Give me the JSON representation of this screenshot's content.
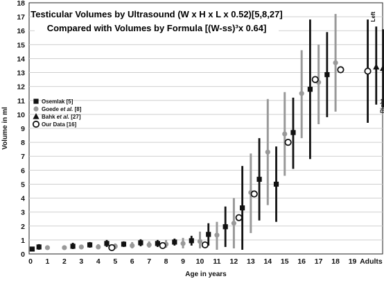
{
  "chart_data": {
    "type": "scatter",
    "title_lines": [
      "Testicular Volumes by Ultrasound (W x H x L x 0.52)[5,8,27]",
      "Compared with Volumes by Formula [(W-ss)³x 0.64]"
    ],
    "xlabel": "Age in years",
    "ylabel": "Volume in ml",
    "ylim": [
      0,
      18
    ],
    "yticks": [
      "0",
      "1",
      "2",
      "3",
      "4",
      "5",
      "6",
      "7",
      "8",
      "9",
      "10",
      "11",
      "12",
      "13",
      "14",
      "15",
      "16",
      "17",
      "18"
    ],
    "xlim": [
      0,
      20.6
    ],
    "xticks": [
      {
        "label": "0",
        "x": 0
      },
      {
        "label": "1",
        "x": 1
      },
      {
        "label": "2",
        "x": 2
      },
      {
        "label": "3",
        "x": 3
      },
      {
        "label": "4",
        "x": 4
      },
      {
        "label": "5",
        "x": 5
      },
      {
        "label": "6",
        "x": 6
      },
      {
        "label": "7",
        "x": 7
      },
      {
        "label": "8",
        "x": 8
      },
      {
        "label": "9",
        "x": 9
      },
      {
        "label": "10",
        "x": 10
      },
      {
        "label": "11",
        "x": 11
      },
      {
        "label": "12",
        "x": 12
      },
      {
        "label": "13",
        "x": 13
      },
      {
        "label": "14",
        "x": 14
      },
      {
        "label": "15",
        "x": 15
      },
      {
        "label": "16",
        "x": 16
      },
      {
        "label": "17",
        "x": 17
      },
      {
        "label": "18",
        "x": 18
      },
      {
        "label": "19",
        "x": 19
      },
      {
        "label": "Adults",
        "x": 20.1
      }
    ],
    "grid": "horizontal",
    "legend_position": "left",
    "series": [
      {
        "name_parts": [
          {
            "t": "Osemlak [5]",
            "i": false
          }
        ],
        "marker": "square",
        "color": "#111111",
        "points": [
          {
            "x": 0.1,
            "y": 0.35,
            "lo": 0.2,
            "hi": 0.5
          },
          {
            "x": 0.5,
            "y": 0.5,
            "lo": 0.3,
            "hi": 0.7
          },
          {
            "x": 2.5,
            "y": 0.55,
            "lo": 0.35,
            "hi": 0.8
          },
          {
            "x": 3.5,
            "y": 0.65,
            "lo": 0.45,
            "hi": 0.85
          },
          {
            "x": 4.5,
            "y": 0.75,
            "lo": 0.5,
            "hi": 1.0
          },
          {
            "x": 5.5,
            "y": 0.7,
            "lo": 0.5,
            "hi": 0.9
          },
          {
            "x": 6.5,
            "y": 0.8,
            "lo": 0.55,
            "hi": 1.05
          },
          {
            "x": 7.5,
            "y": 0.75,
            "lo": 0.5,
            "hi": 1.0
          },
          {
            "x": 8.5,
            "y": 0.85,
            "lo": 0.6,
            "hi": 1.1
          },
          {
            "x": 9.5,
            "y": 0.95,
            "lo": 0.6,
            "hi": 1.3
          },
          {
            "x": 10.5,
            "y": 1.4,
            "lo": 0.6,
            "hi": 2.2
          },
          {
            "x": 11.5,
            "y": 1.95,
            "lo": 0.5,
            "hi": 3.4
          },
          {
            "x": 12.5,
            "y": 3.3,
            "lo": 0.3,
            "hi": 6.3
          },
          {
            "x": 13.5,
            "y": 5.35,
            "lo": 2.4,
            "hi": 8.3
          },
          {
            "x": 14.5,
            "y": 5.0,
            "lo": 2.3,
            "hi": 7.7
          },
          {
            "x": 15.5,
            "y": 8.7,
            "lo": 6.1,
            "hi": 11.2
          },
          {
            "x": 16.5,
            "y": 11.8,
            "lo": 6.8,
            "hi": 16.8
          },
          {
            "x": 17.5,
            "y": 12.85,
            "lo": 9.8,
            "hi": 15.9
          }
        ]
      },
      {
        "name_parts": [
          {
            "t": "Goede ",
            "i": false
          },
          {
            "t": "et al.",
            "i": true
          },
          {
            "t": " [8]",
            "i": false
          }
        ],
        "marker": "circle-filled",
        "color": "#999999",
        "points": [
          {
            "x": 1.0,
            "y": 0.45,
            "lo": 0.35,
            "hi": 0.55
          },
          {
            "x": 2.0,
            "y": 0.45,
            "lo": 0.35,
            "hi": 0.6
          },
          {
            "x": 3.0,
            "y": 0.5,
            "lo": 0.35,
            "hi": 0.65
          },
          {
            "x": 4.0,
            "y": 0.5,
            "lo": 0.35,
            "hi": 0.7
          },
          {
            "x": 5.0,
            "y": 0.55,
            "lo": 0.35,
            "hi": 0.75
          },
          {
            "x": 6.0,
            "y": 0.6,
            "lo": 0.4,
            "hi": 0.85
          },
          {
            "x": 7.0,
            "y": 0.65,
            "lo": 0.45,
            "hi": 0.9
          },
          {
            "x": 8.0,
            "y": 0.7,
            "lo": 0.45,
            "hi": 1.0
          },
          {
            "x": 9.0,
            "y": 0.75,
            "lo": 0.4,
            "hi": 1.15
          },
          {
            "x": 10.0,
            "y": 0.9,
            "lo": 0.4,
            "hi": 1.6
          },
          {
            "x": 11.0,
            "y": 1.35,
            "lo": 0.3,
            "hi": 2.3
          },
          {
            "x": 12.0,
            "y": 2.2,
            "lo": 0.4,
            "hi": 4.0
          },
          {
            "x": 13.0,
            "y": 4.4,
            "lo": 1.5,
            "hi": 7.2
          },
          {
            "x": 14.0,
            "y": 7.3,
            "lo": 3.5,
            "hi": 11.1
          },
          {
            "x": 15.0,
            "y": 8.6,
            "lo": 5.6,
            "hi": 11.6
          },
          {
            "x": 16.0,
            "y": 11.5,
            "lo": 8.3,
            "hi": 14.6
          },
          {
            "x": 17.0,
            "y": 12.3,
            "lo": 9.3,
            "hi": 15.0
          },
          {
            "x": 18.0,
            "y": 13.7,
            "lo": 10.2,
            "hi": 17.2
          }
        ]
      },
      {
        "name_parts": [
          {
            "t": "Bahk ",
            "i": false
          },
          {
            "t": "et al.",
            "i": true
          },
          {
            "t": " [27]",
            "i": false
          }
        ],
        "marker": "triangle",
        "color": "#111111",
        "points": [
          {
            "x": 20.4,
            "y": 13.4,
            "lo": 10.7,
            "hi": 16.3
          },
          {
            "x": 20.8,
            "y": 13.3,
            "lo": 10.5,
            "hi": 16.1
          }
        ]
      },
      {
        "name_parts": [
          {
            "t": "Our Data [16]",
            "i": false
          }
        ],
        "marker": "circle-open",
        "color": "#111111",
        "points": [
          {
            "x": 4.8,
            "y": 0.45
          },
          {
            "x": 7.8,
            "y": 0.6
          },
          {
            "x": 10.3,
            "y": 0.65
          },
          {
            "x": 12.3,
            "y": 2.6
          },
          {
            "x": 13.2,
            "y": 4.3
          },
          {
            "x": 15.2,
            "y": 8.0
          },
          {
            "x": 16.8,
            "y": 12.5
          },
          {
            "x": 18.3,
            "y": 13.2
          },
          {
            "x": 19.9,
            "y": 13.1,
            "lo": 9.4,
            "hi": 16.8
          }
        ]
      }
    ],
    "annotations": [
      {
        "text": "Left",
        "x": 20.2,
        "y": 17.0
      },
      {
        "text": "Right",
        "x": 20.75,
        "y": 10.6
      }
    ]
  }
}
